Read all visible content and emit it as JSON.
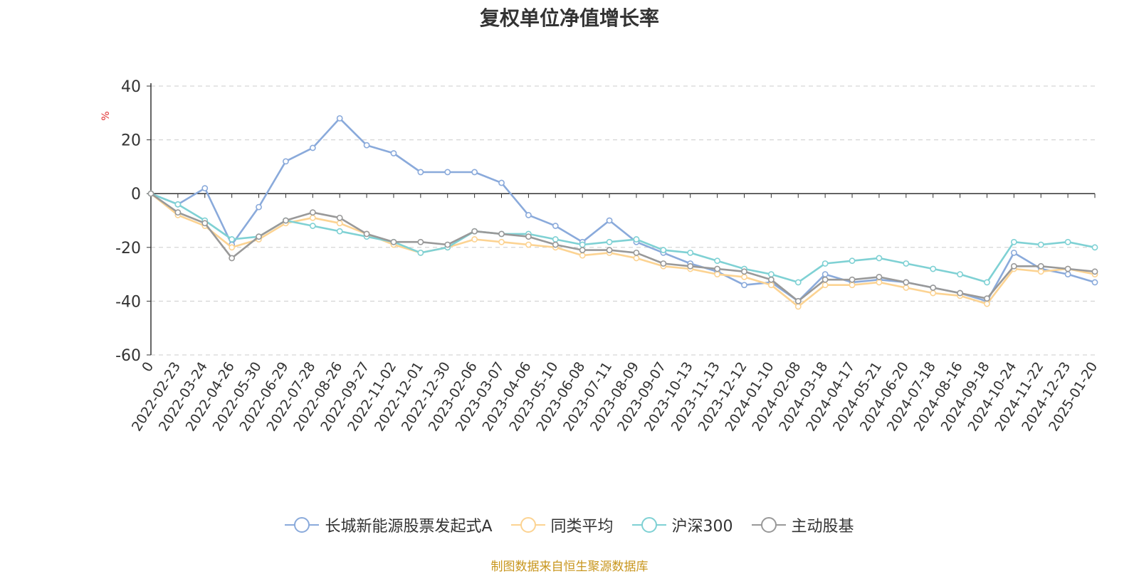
{
  "chart_data": {
    "type": "line",
    "title": "复权单位净值增长率",
    "ylabel": "%",
    "ylim": [
      -60,
      40
    ],
    "yticks": [
      -60,
      -40,
      -20,
      0,
      20,
      40
    ],
    "grid": true,
    "legend_position": "bottom-center",
    "x": [
      "0",
      "2022-02-23",
      "2022-03-24",
      "2022-04-26",
      "2022-05-30",
      "2022-06-29",
      "2022-07-28",
      "2022-08-26",
      "2022-09-27",
      "2022-11-02",
      "2022-12-01",
      "2022-12-30",
      "2023-02-06",
      "2023-03-07",
      "2023-04-06",
      "2023-05-10",
      "2023-06-08",
      "2023-07-11",
      "2023-08-09",
      "2023-09-07",
      "2023-10-13",
      "2023-11-13",
      "2023-12-12",
      "2024-01-10",
      "2024-02-08",
      "2024-03-18",
      "2024-04-17",
      "2024-05-21",
      "2024-06-20",
      "2024-07-18",
      "2024-08-16",
      "2024-09-18",
      "2024-10-24",
      "2024-11-22",
      "2024-12-23",
      "2025-01-20"
    ],
    "series": [
      {
        "name": "长城新能源股票发起式A",
        "color": "#8aaadb",
        "values": [
          0,
          -4,
          2,
          -19,
          -5,
          12,
          17,
          28,
          18,
          15,
          8,
          8,
          8,
          4,
          -8,
          -12,
          -18,
          -10,
          -18,
          -22,
          -26,
          -29,
          -34,
          -33,
          -40,
          -30,
          -33,
          -32,
          -33,
          -35,
          -37,
          -40,
          -22,
          -28,
          -30,
          -33
        ]
      },
      {
        "name": "同类平均",
        "color": "#fcd392",
        "values": [
          0,
          -8,
          -12,
          -20,
          -17,
          -11,
          -9,
          -11,
          -15,
          -19,
          -22,
          -20,
          -17,
          -18,
          -19,
          -20,
          -23,
          -22,
          -24,
          -27,
          -28,
          -30,
          -31,
          -34,
          -42,
          -34,
          -34,
          -33,
          -35,
          -37,
          -38,
          -41,
          -28,
          -29,
          -28,
          -30
        ]
      },
      {
        "name": "沪深300",
        "color": "#7fd1d4",
        "values": [
          0,
          -4,
          -10,
          -17,
          -16,
          -10,
          -12,
          -14,
          -16,
          -18,
          -22,
          -20,
          -14,
          -15,
          -15,
          -17,
          -19,
          -18,
          -17,
          -21,
          -22,
          -25,
          -28,
          -30,
          -33,
          -26,
          -25,
          -24,
          -26,
          -28,
          -30,
          -33,
          -18,
          -19,
          -18,
          -20
        ]
      },
      {
        "name": "主动股基",
        "color": "#999999",
        "values": [
          0,
          -7,
          -11,
          -24,
          -16,
          -10,
          -7,
          -9,
          -15,
          -18,
          -18,
          -19,
          -14,
          -15,
          -16,
          -19,
          -21,
          -21,
          -22,
          -26,
          -27,
          -28,
          -29,
          -32,
          -40,
          -32,
          -32,
          -31,
          -33,
          -35,
          -37,
          -39,
          -27,
          -27,
          -28,
          -29
        ]
      }
    ]
  },
  "legend": {
    "items": [
      "长城新能源股票发起式A",
      "同类平均",
      "沪深300",
      "主动股基"
    ]
  },
  "footer": {
    "source": "制图数据来自恒生聚源数据库"
  }
}
